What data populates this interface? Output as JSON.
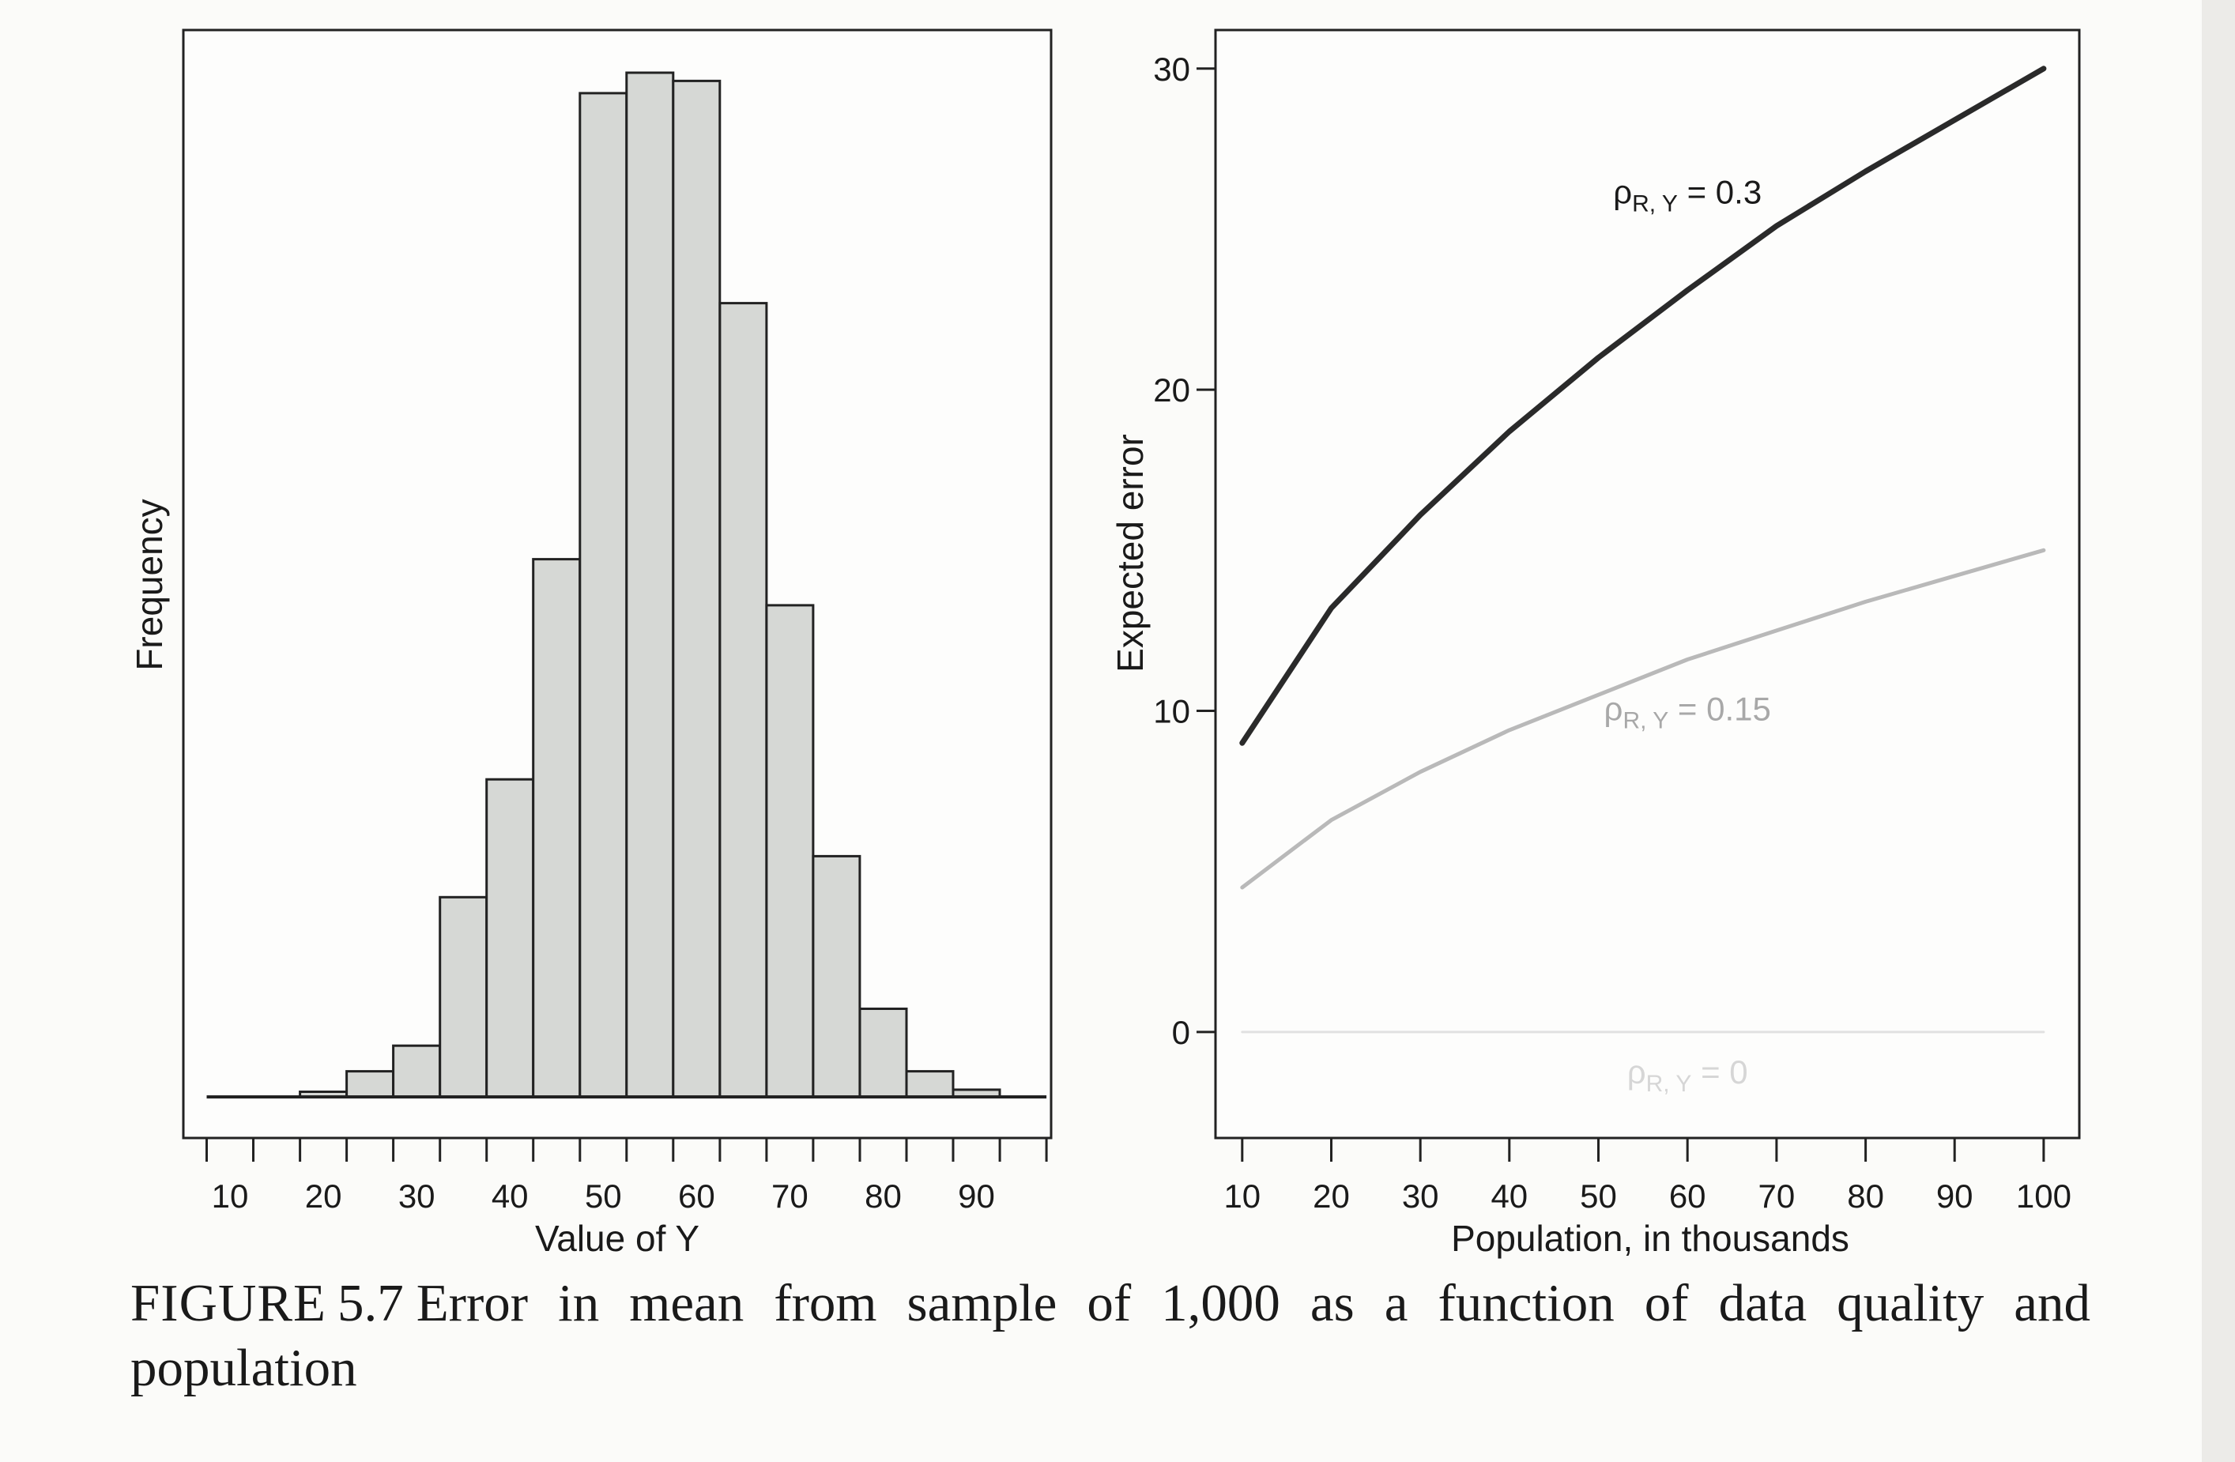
{
  "figure": {
    "label": "FIGURE",
    "number": "5.7",
    "caption_text": "Error in mean from sample of 1,000 as a function of data quality and population"
  },
  "chart_data": [
    {
      "type": "bar",
      "subtype": "histogram",
      "title": "",
      "xlabel": "Value of Y",
      "ylabel": "Frequency",
      "xlim": [
        5,
        98
      ],
      "x_ticks": [
        10,
        20,
        30,
        40,
        50,
        60,
        70,
        80,
        90
      ],
      "bin_edges": [
        7.5,
        12.5,
        17.5,
        22.5,
        27.5,
        32.5,
        37.5,
        42.5,
        47.5,
        52.5,
        57.5,
        62.5,
        67.5,
        72.5,
        77.5,
        82.5,
        87.5,
        92.5,
        97.5
      ],
      "values": [
        0,
        0,
        0.5,
        2.5,
        5,
        19.5,
        31,
        52.5,
        98,
        100,
        99.2,
        77.5,
        48,
        23.5,
        8.6,
        2.5,
        0.7,
        0.1
      ],
      "y_axis_ticks": false,
      "note": "Frequencies are relative heights (max = 100); the frequency axis is unlabeled in the original."
    },
    {
      "type": "line",
      "title": "",
      "xlabel": "Population, in thousands",
      "ylabel": "Expected error",
      "xlim": [
        7,
        104
      ],
      "ylim": [
        -3.3,
        31.2
      ],
      "x_ticks": [
        10,
        20,
        30,
        40,
        50,
        60,
        70,
        80,
        90,
        100
      ],
      "y_ticks": [
        0,
        10,
        20,
        30
      ],
      "x": [
        10,
        20,
        30,
        40,
        50,
        60,
        70,
        80,
        90,
        100
      ],
      "series": [
        {
          "name": "ρR, Y = 0.3",
          "label_main": "ρ",
          "label_sub": "R, Y",
          "label_rest": " = 0.3",
          "color": "#2a2a2a",
          "values": [
            9.0,
            13.2,
            16.1,
            18.7,
            21.0,
            23.1,
            25.1,
            26.8,
            28.4,
            30.0
          ]
        },
        {
          "name": "ρR, Y = 0.15",
          "label_main": "ρ",
          "label_sub": "R, Y",
          "label_rest": " = 0.15",
          "color": "#b9b9b9",
          "values": [
            4.5,
            6.6,
            8.1,
            9.4,
            10.5,
            11.6,
            12.5,
            13.4,
            14.2,
            15.0
          ]
        },
        {
          "name": "ρR, Y = 0",
          "label_main": "ρ",
          "label_sub": "R, Y",
          "label_rest": " = 0",
          "color": "#e1e1e1",
          "values": [
            0,
            0,
            0,
            0,
            0,
            0,
            0,
            0,
            0,
            0
          ]
        }
      ]
    }
  ]
}
